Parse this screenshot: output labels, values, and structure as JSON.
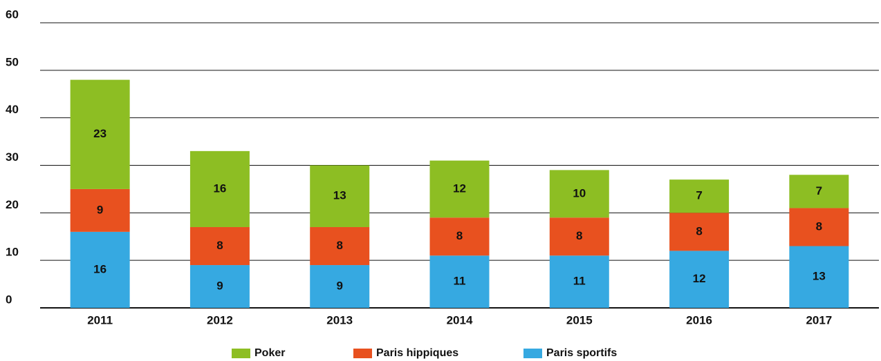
{
  "chart_data": {
    "type": "stacked_bar",
    "categories": [
      "2011",
      "2012",
      "2013",
      "2014",
      "2015",
      "2016",
      "2017"
    ],
    "series": [
      {
        "name": "Poker",
        "color": "#8dbe23",
        "values": [
          23,
          16,
          13,
          12,
          10,
          7,
          7
        ]
      },
      {
        "name": "Paris hippiques",
        "color": "#e8511f",
        "values": [
          9,
          8,
          8,
          8,
          8,
          8,
          8
        ]
      },
      {
        "name": "Paris sportifs",
        "color": "#36a9e1",
        "values": [
          16,
          9,
          9,
          11,
          11,
          12,
          13
        ]
      }
    ],
    "ylim": [
      0,
      60
    ],
    "yticks": [
      0,
      10,
      20,
      30,
      40,
      50,
      60
    ],
    "grid": true,
    "legend": "bottom"
  }
}
